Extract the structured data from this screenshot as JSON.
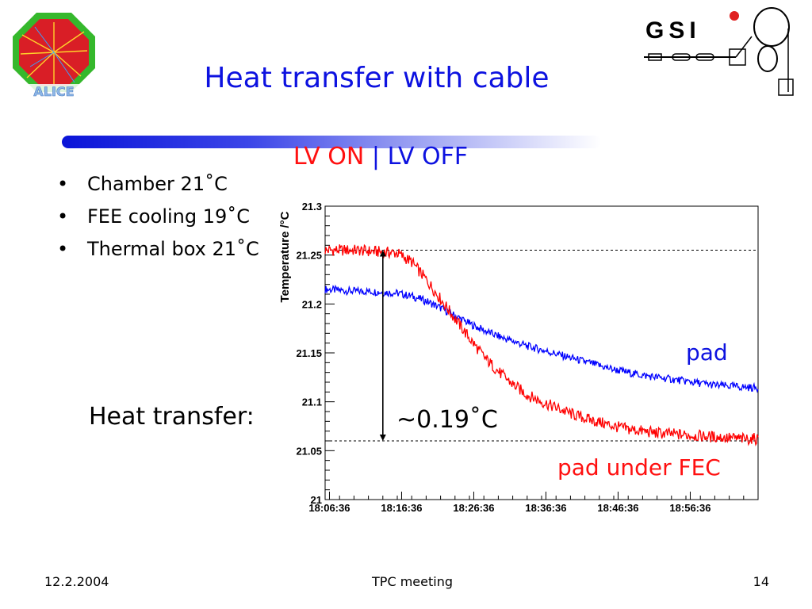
{
  "slide": {
    "title": "Heat transfer with cable",
    "lv_on": "LV ON",
    "lv_sep": "|",
    "lv_off": "LV OFF",
    "bullets": [
      "Chamber 21˚C",
      "FEE cooling 19˚C",
      "Thermal box 21˚C"
    ],
    "heat_transfer_label": "Heat transfer:",
    "difference_label": "~0.19˚C",
    "pad_label": "pad",
    "pad_under_fec_label": "pad under FEC"
  },
  "footer": {
    "date": "12.2.2004",
    "meeting": "TPC meeting",
    "page": "14"
  },
  "logos": {
    "left": "ALICE",
    "right": "GSI"
  },
  "colors": {
    "title": "#0d12e0",
    "lv_on": "#ff1010",
    "pad_series": "#0000ff",
    "pad_under_fec_series": "#ff0000"
  },
  "chart_data": {
    "type": "line",
    "title": "",
    "xlabel": "",
    "ylabel": "Temperature /°C",
    "ylim": [
      21.0,
      21.3
    ],
    "y_ticks": [
      21,
      21.05,
      21.1,
      21.15,
      21.2,
      21.25,
      21.3
    ],
    "y_tick_labels": [
      "21",
      "21.05",
      "21.1",
      "21.15",
      "21.2",
      "21.25",
      "21.3"
    ],
    "x_ticks": [
      "18:06:36",
      "18:16:36",
      "18:26:36",
      "18:36:36",
      "18:46:36",
      "18:56:36"
    ],
    "x_range": [
      "18:06:00",
      "18:66:00"
    ],
    "x": [
      "18:06",
      "18:08",
      "18:10",
      "18:12",
      "18:14",
      "18:16",
      "18:18",
      "18:20",
      "18:22",
      "18:24",
      "18:26",
      "18:28",
      "18:30",
      "18:32",
      "18:34",
      "18:36",
      "18:38",
      "18:40",
      "18:42",
      "18:44",
      "18:46",
      "18:48",
      "18:50",
      "18:52",
      "18:54",
      "18:56",
      "18:58",
      "19:00",
      "19:02",
      "19:04",
      "19:06"
    ],
    "series": [
      {
        "name": "pad",
        "color": "#0000ff",
        "values": [
          21.215,
          21.214,
          21.213,
          21.213,
          21.212,
          21.211,
          21.208,
          21.203,
          21.196,
          21.188,
          21.18,
          21.173,
          21.167,
          21.162,
          21.157,
          21.153,
          21.149,
          21.145,
          21.141,
          21.137,
          21.133,
          21.13,
          21.127,
          21.125,
          21.123,
          21.121,
          21.119,
          21.117,
          21.116,
          21.115,
          21.114
        ]
      },
      {
        "name": "pad under FEC",
        "color": "#ff0000",
        "values": [
          21.255,
          21.255,
          21.255,
          21.254,
          21.253,
          21.252,
          21.243,
          21.225,
          21.205,
          21.185,
          21.165,
          21.146,
          21.131,
          21.118,
          21.107,
          21.1,
          21.094,
          21.088,
          21.083,
          21.079,
          21.075,
          21.072,
          21.07,
          21.068,
          21.067,
          21.066,
          21.065,
          21.064,
          21.063,
          21.062,
          21.062
        ]
      }
    ],
    "reference_lines": [
      21.255,
      21.06
    ],
    "annotation_arrow": {
      "from": 21.255,
      "to": 21.06,
      "x": "18:14"
    },
    "grid": false,
    "legend": "none"
  }
}
